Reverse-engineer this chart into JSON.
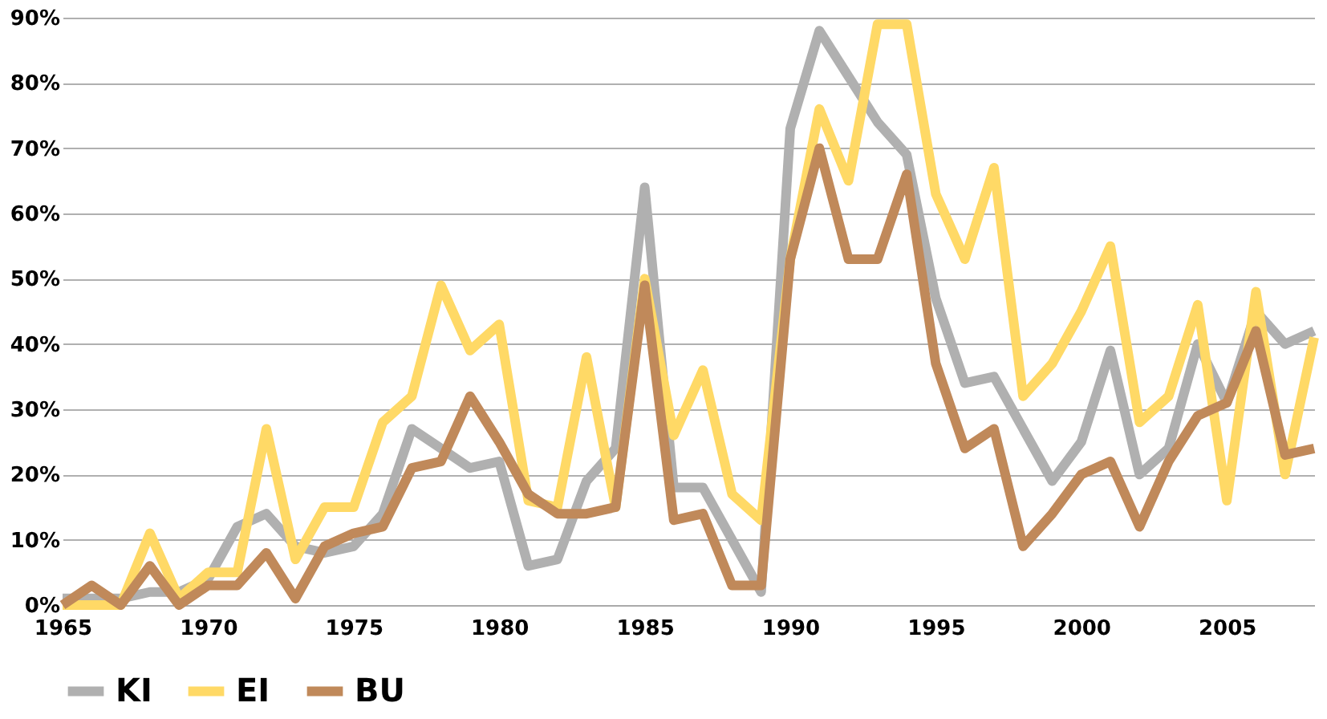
{
  "chart_data": {
    "type": "line",
    "x": [
      1965,
      1966,
      1967,
      1968,
      1969,
      1970,
      1971,
      1972,
      1973,
      1974,
      1975,
      1976,
      1977,
      1978,
      1979,
      1980,
      1981,
      1982,
      1983,
      1984,
      1985,
      1986,
      1987,
      1988,
      1989,
      1990,
      1991,
      1992,
      1993,
      1994,
      1995,
      1996,
      1997,
      1998,
      1999,
      2000,
      2001,
      2002,
      2003,
      2004,
      2005,
      2006,
      2007,
      2008
    ],
    "series": [
      {
        "name": "KI",
        "color": "#b0b0b0",
        "values": [
          1,
          1,
          1,
          2,
          2,
          4,
          12,
          14,
          9,
          8,
          9,
          14,
          27,
          24,
          21,
          22,
          6,
          7,
          19,
          24,
          64,
          18,
          18,
          10,
          2,
          73,
          88,
          81,
          74,
          69,
          47,
          34,
          35,
          27,
          19,
          25,
          39,
          20,
          24,
          40,
          31,
          45,
          40,
          42
        ]
      },
      {
        "name": "EI",
        "color": "#ffd966",
        "values": [
          0,
          0,
          0,
          11,
          1,
          5,
          5,
          27,
          7,
          15,
          15,
          28,
          32,
          49,
          39,
          43,
          16,
          15,
          38,
          15,
          50,
          26,
          36,
          17,
          13,
          53,
          76,
          65,
          89,
          89,
          63,
          53,
          67,
          32,
          37,
          45,
          55,
          28,
          32,
          46,
          16,
          48,
          20,
          41
        ]
      },
      {
        "name": "BU",
        "color": "#c0895a",
        "values": [
          0,
          3,
          0,
          6,
          0,
          3,
          3,
          8,
          1,
          9,
          11,
          12,
          21,
          22,
          32,
          25,
          17,
          14,
          14,
          15,
          49,
          13,
          14,
          3,
          3,
          53,
          70,
          53,
          53,
          66,
          37,
          24,
          27,
          9,
          14,
          20,
          22,
          12,
          22,
          29,
          31,
          42,
          23,
          24
        ]
      }
    ],
    "xlim": [
      1965,
      2008
    ],
    "xticks": [
      1965,
      1970,
      1975,
      1980,
      1985,
      1990,
      1995,
      2000,
      2005
    ],
    "ylim": [
      0,
      90
    ],
    "yticks": [
      {
        "value": 0,
        "label": "0%"
      },
      {
        "value": 10,
        "label": "10%"
      },
      {
        "value": 20,
        "label": "20%"
      },
      {
        "value": 30,
        "label": "30%"
      },
      {
        "value": 40,
        "label": "40%"
      },
      {
        "value": 50,
        "label": "50%"
      },
      {
        "value": 60,
        "label": "60%"
      },
      {
        "value": 70,
        "label": "70%"
      },
      {
        "value": 80,
        "label": "80%"
      },
      {
        "value": 90,
        "label": "90%"
      }
    ],
    "grid": "y",
    "legend": "bottom",
    "line_style": "solid",
    "marker": "none"
  }
}
